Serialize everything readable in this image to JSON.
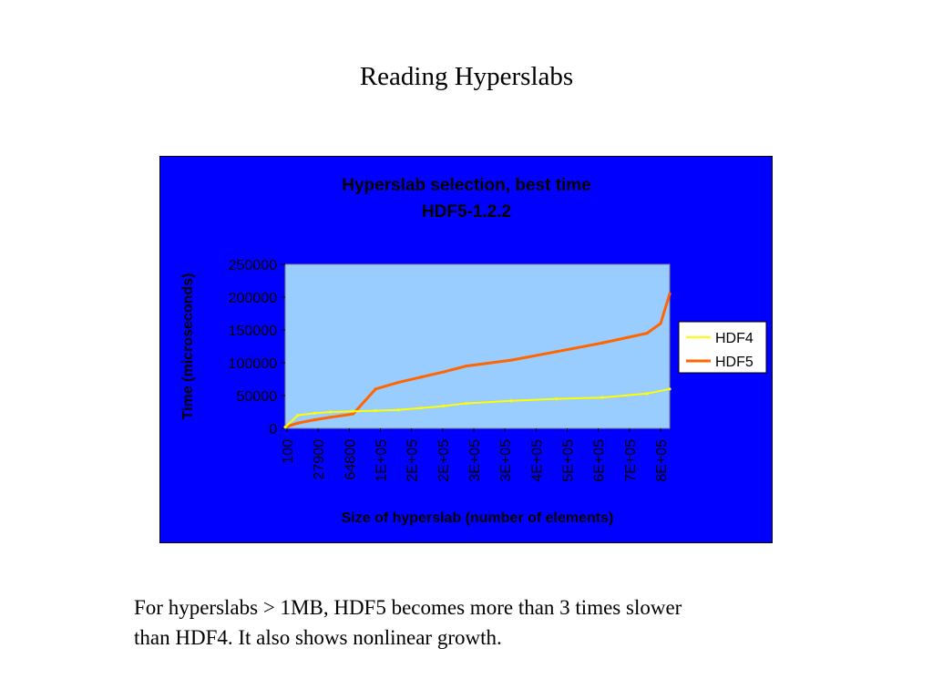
{
  "slide": {
    "title": "Reading Hyperslabs",
    "caption_line1": "For hyperslabs > 1MB, HDF5 becomes more than 3 times slower",
    "caption_line2": "than HDF4. It also shows nonlinear growth."
  },
  "colors": {
    "chart_background": "#0000ff",
    "plot_area": "#99ccff",
    "text": "#000000",
    "hdf4": "#ffff00",
    "hdf5": "#ff6600"
  },
  "chart_data": {
    "type": "line",
    "title_line1": "Hyperslab selection, best time",
    "title_line2": "HDF5-1.2.2",
    "xlabel": "Size of hyperslab (number of elements)",
    "ylabel": "Time (microseconds)",
    "ylim": [
      0,
      250000
    ],
    "yticks": [
      0,
      50000,
      100000,
      150000,
      200000,
      250000
    ],
    "x_tick_labels": [
      "100",
      "27900",
      "64800",
      "1E+05",
      "2E+05",
      "2E+05",
      "3E+05",
      "3E+05",
      "4E+05",
      "5E+05",
      "6E+05",
      "7E+05",
      "8E+05"
    ],
    "grid": false,
    "legend_position": "right",
    "series": [
      {
        "name": "HDF4",
        "x": [
          100,
          27900,
          64800,
          100000,
          150000,
          200000,
          250000,
          300000,
          350000,
          400000,
          500000,
          600000,
          700000,
          800000,
          850000
        ],
        "values": [
          2000,
          20000,
          23000,
          25000,
          26000,
          27000,
          28000,
          31000,
          34000,
          38000,
          42000,
          45000,
          47000,
          53000,
          60000
        ]
      },
      {
        "name": "HDF5",
        "x": [
          100,
          27900,
          64800,
          100000,
          150000,
          200000,
          250000,
          300000,
          350000,
          400000,
          500000,
          600000,
          700000,
          800000,
          830000,
          850000
        ],
        "values": [
          2000,
          8000,
          13000,
          17000,
          22000,
          60000,
          70000,
          78000,
          86000,
          95000,
          104000,
          117000,
          130000,
          145000,
          160000,
          205000
        ]
      }
    ]
  }
}
